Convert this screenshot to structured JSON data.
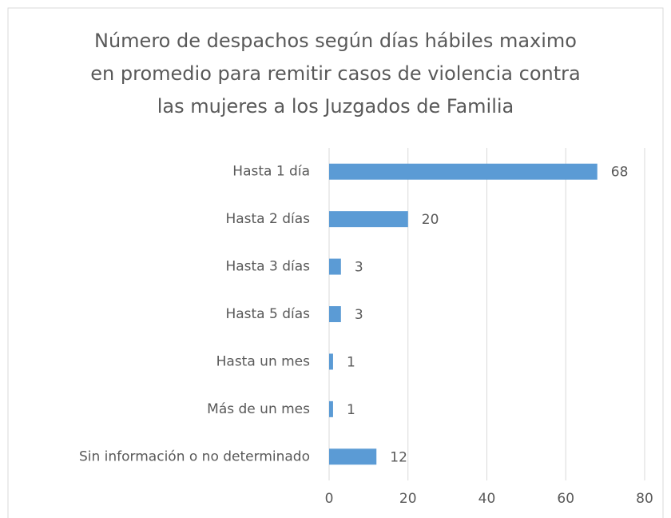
{
  "chart_data": {
    "type": "hbar",
    "title": [
      "Número de despachos según días hábiles maximo",
      "en promedio para remitir casos de violencia contra",
      "las mujeres a los Juzgados de Familia"
    ],
    "categories": [
      "Hasta 1 día",
      "Hasta 2 días",
      "Hasta 3 días",
      "Hasta 5 días",
      "Hasta un mes",
      "Más de un mes",
      "Sin información o no determinado"
    ],
    "values": [
      68,
      20,
      3,
      3,
      1,
      1,
      12
    ],
    "color": "#5b9bd5",
    "xlim": [
      0,
      80
    ],
    "xticks": [
      0,
      20,
      40,
      60,
      80
    ],
    "grid": true
  }
}
